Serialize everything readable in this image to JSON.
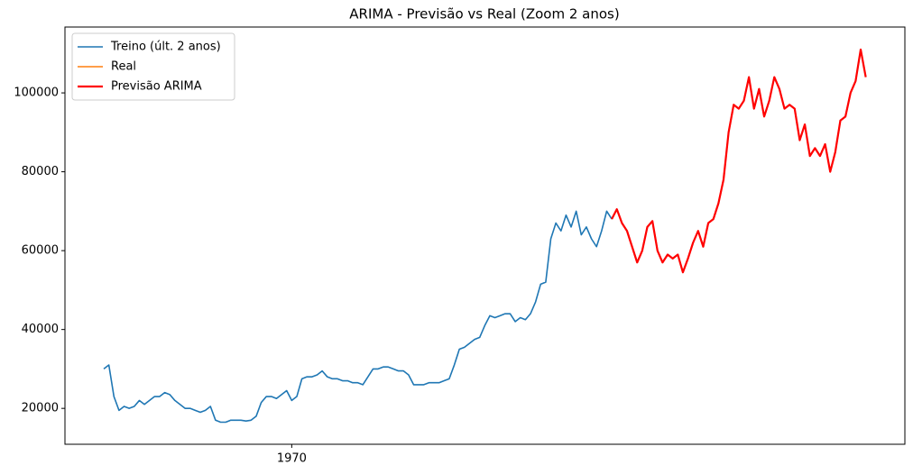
{
  "chart_data": {
    "type": "line",
    "title": "ARIMA - Previsão vs Real (Zoom 2 anos)",
    "xlim": [
      -7.64,
      157.7
    ],
    "xticks": [
      {
        "value": 37,
        "label": "1970"
      }
    ],
    "ylim": [
      10900,
      116700
    ],
    "yticks": [
      20000,
      40000,
      60000,
      80000,
      100000
    ],
    "legend": "upper left",
    "grid": false,
    "series": [
      {
        "name": "Treino (últ. 2 anos)",
        "color": "#1f77b4",
        "width": 1.6,
        "x": [
          0,
          1,
          2,
          3,
          4,
          5,
          6,
          7,
          8,
          9,
          10,
          11,
          12,
          13,
          14,
          15,
          16,
          17,
          18,
          19,
          20,
          21,
          22,
          23,
          24,
          25,
          26,
          27,
          28,
          29,
          30,
          31,
          32,
          33,
          34,
          35,
          36,
          37,
          38,
          39,
          40,
          41,
          42,
          43,
          44,
          45,
          46,
          47,
          48,
          49,
          50,
          51,
          52,
          53,
          54,
          55,
          56,
          57,
          58,
          59,
          60,
          61,
          62,
          63,
          64,
          65,
          66,
          67,
          68,
          69,
          70,
          71,
          72,
          73,
          74,
          75,
          76,
          77,
          78,
          79,
          80,
          81,
          82,
          83,
          84,
          85,
          86,
          87,
          88,
          89,
          90,
          91,
          92,
          93,
          94,
          95,
          96,
          97,
          98,
          99,
          100
        ],
        "values": [
          30000,
          31000,
          23000,
          19500,
          20500,
          20000,
          20500,
          22000,
          21000,
          22000,
          23000,
          23000,
          24000,
          23500,
          22000,
          21000,
          20000,
          20000,
          19500,
          19000,
          19500,
          20500,
          17000,
          16500,
          16500,
          17000,
          17000,
          17000,
          16800,
          17000,
          18000,
          21500,
          23000,
          23000,
          22500,
          23500,
          24500,
          22000,
          23000,
          27500,
          28000,
          28000,
          28500,
          29500,
          28000,
          27500,
          27500,
          27000,
          27000,
          26500,
          26500,
          26000,
          28000,
          30000,
          30000,
          30500,
          30500,
          30000,
          29500,
          29500,
          28500,
          26000,
          26000,
          26000,
          26500,
          26500,
          26500,
          27000,
          27500,
          31000,
          35000,
          35500,
          36500,
          37500,
          38000,
          41000,
          43500,
          43000,
          43500,
          44000,
          44000,
          42000,
          43000,
          42500,
          44000,
          47000,
          51500,
          52000,
          63000,
          67000,
          65000,
          69000,
          66000,
          70000,
          64000,
          66000,
          63000,
          61000,
          65000,
          70000,
          68000
        ]
      },
      {
        "name": "Real",
        "color": "#ff7f0e",
        "width": 1.6,
        "x": [
          100,
          101,
          102,
          103,
          104,
          105,
          106,
          107,
          108,
          109,
          110,
          111,
          112,
          113,
          114,
          115,
          116,
          117,
          118,
          119,
          120,
          121,
          122,
          123,
          124,
          125,
          126,
          127,
          128,
          129,
          130,
          131,
          132,
          133,
          134,
          135,
          136,
          137,
          138,
          139,
          140,
          141,
          142,
          143,
          144,
          145,
          146,
          147,
          148,
          149,
          150
        ],
        "values": [
          68000,
          70500,
          67000,
          65000,
          61000,
          57000,
          60000,
          66000,
          67500,
          60000,
          57000,
          59000,
          58000,
          59000,
          54500,
          58000,
          62000,
          65000,
          61000,
          67000,
          68000,
          72000,
          78000,
          90000,
          97000,
          96000,
          98000,
          104000,
          96000,
          101000,
          94000,
          98000,
          104000,
          101000,
          96000,
          97000,
          96000,
          88000,
          92000,
          84000,
          86000,
          84000,
          87000,
          80000,
          85000,
          93000,
          94000,
          100000,
          103000,
          111000,
          104000
        ]
      },
      {
        "name": "Previsão ARIMA",
        "color": "#ff0000",
        "width": 2.2,
        "x": [
          100,
          101,
          102,
          103,
          104,
          105,
          106,
          107,
          108,
          109,
          110,
          111,
          112,
          113,
          114,
          115,
          116,
          117,
          118,
          119,
          120,
          121,
          122,
          123,
          124,
          125,
          126,
          127,
          128,
          129,
          130,
          131,
          132,
          133,
          134,
          135,
          136,
          137,
          138,
          139,
          140,
          141,
          142,
          143,
          144,
          145,
          146,
          147,
          148,
          149,
          150
        ],
        "values": [
          68000,
          70500,
          67000,
          65000,
          61000,
          57000,
          60000,
          66000,
          67500,
          60000,
          57000,
          59000,
          58000,
          59000,
          54500,
          58000,
          62000,
          65000,
          61000,
          67000,
          68000,
          72000,
          78000,
          90000,
          97000,
          96000,
          98000,
          104000,
          96000,
          101000,
          94000,
          98000,
          104000,
          101000,
          96000,
          97000,
          96000,
          88000,
          92000,
          84000,
          86000,
          84000,
          87000,
          80000,
          85000,
          93000,
          94000,
          100000,
          103000,
          111000,
          104000
        ]
      }
    ]
  }
}
